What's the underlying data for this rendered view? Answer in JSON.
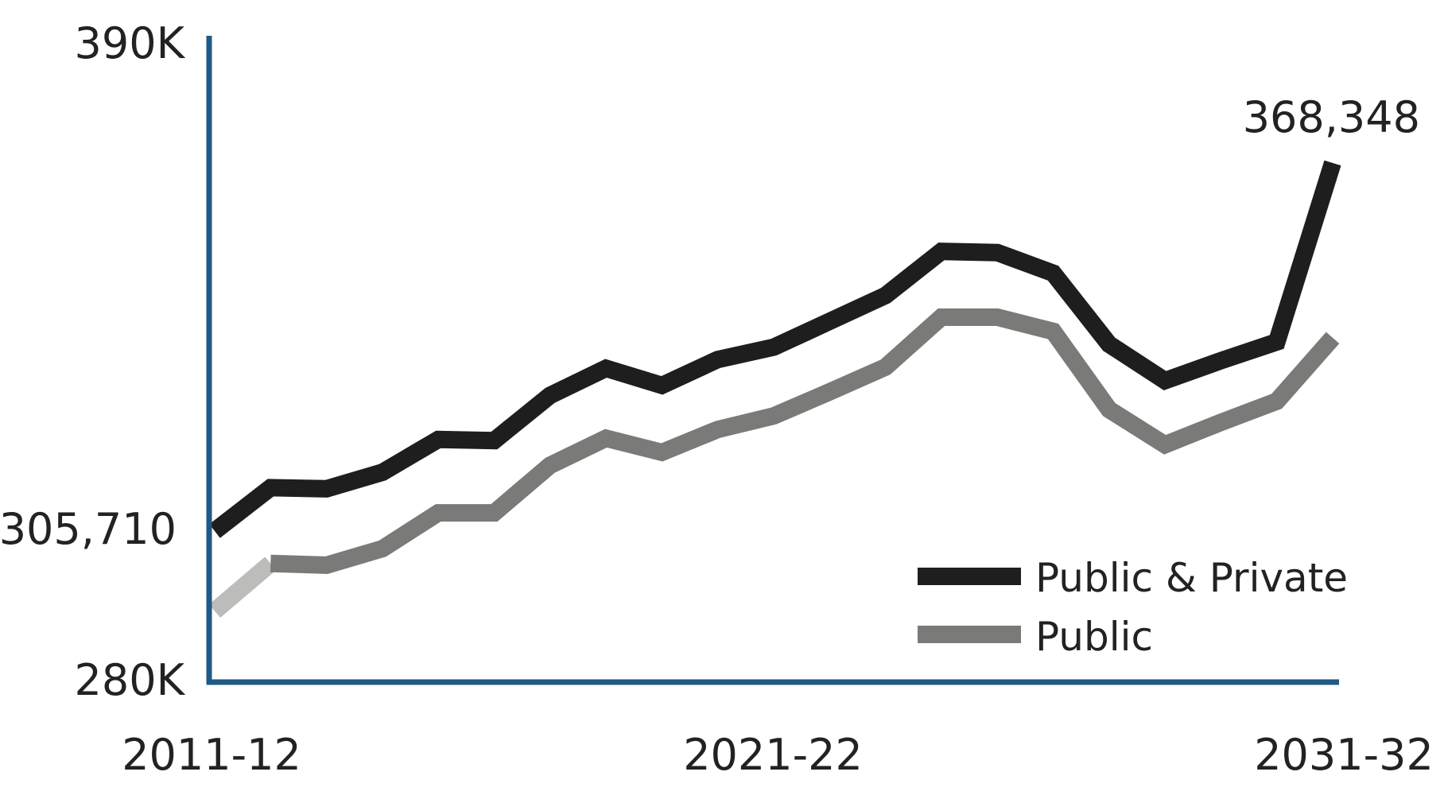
{
  "chart_data": {
    "type": "line",
    "x": [
      "2011-12",
      "2012-13",
      "2013-14",
      "2014-15",
      "2015-16",
      "2016-17",
      "2017-18",
      "2018-19",
      "2019-20",
      "2020-21",
      "2021-22",
      "2022-23",
      "2023-24",
      "2024-25",
      "2025-26",
      "2026-27",
      "2027-28",
      "2028-29",
      "2029-30",
      "2030-31",
      "2031-32"
    ],
    "x_tick_labels": [
      "2011-12",
      "2021-22",
      "2031-32"
    ],
    "y_tick_labels": [
      "390K",
      "280K"
    ],
    "ylim": [
      280000,
      390000
    ],
    "series": [
      {
        "name": "Public & Private",
        "color": "#1e1e1e",
        "values": [
          305710,
          313100,
          312900,
          315700,
          321300,
          321100,
          328800,
          333400,
          330500,
          334900,
          337000,
          341400,
          345800,
          353300,
          353100,
          349600,
          337500,
          331300,
          334700,
          337900,
          368348
        ]
      },
      {
        "name": "Public",
        "color": "#7a7a78",
        "values": [
          292100,
          300200,
          299900,
          302700,
          308800,
          308800,
          316900,
          321500,
          319100,
          323000,
          325300,
          329400,
          333600,
          342100,
          342100,
          339700,
          326400,
          320400,
          324200,
          327800,
          338600
        ]
      }
    ],
    "annotations": {
      "start_value": "305,710",
      "end_value": "368,348"
    },
    "first_segment_color": "#bcbcba",
    "axis_color": "#1f5a86",
    "legend_position": "bottom-right",
    "grid": false
  }
}
